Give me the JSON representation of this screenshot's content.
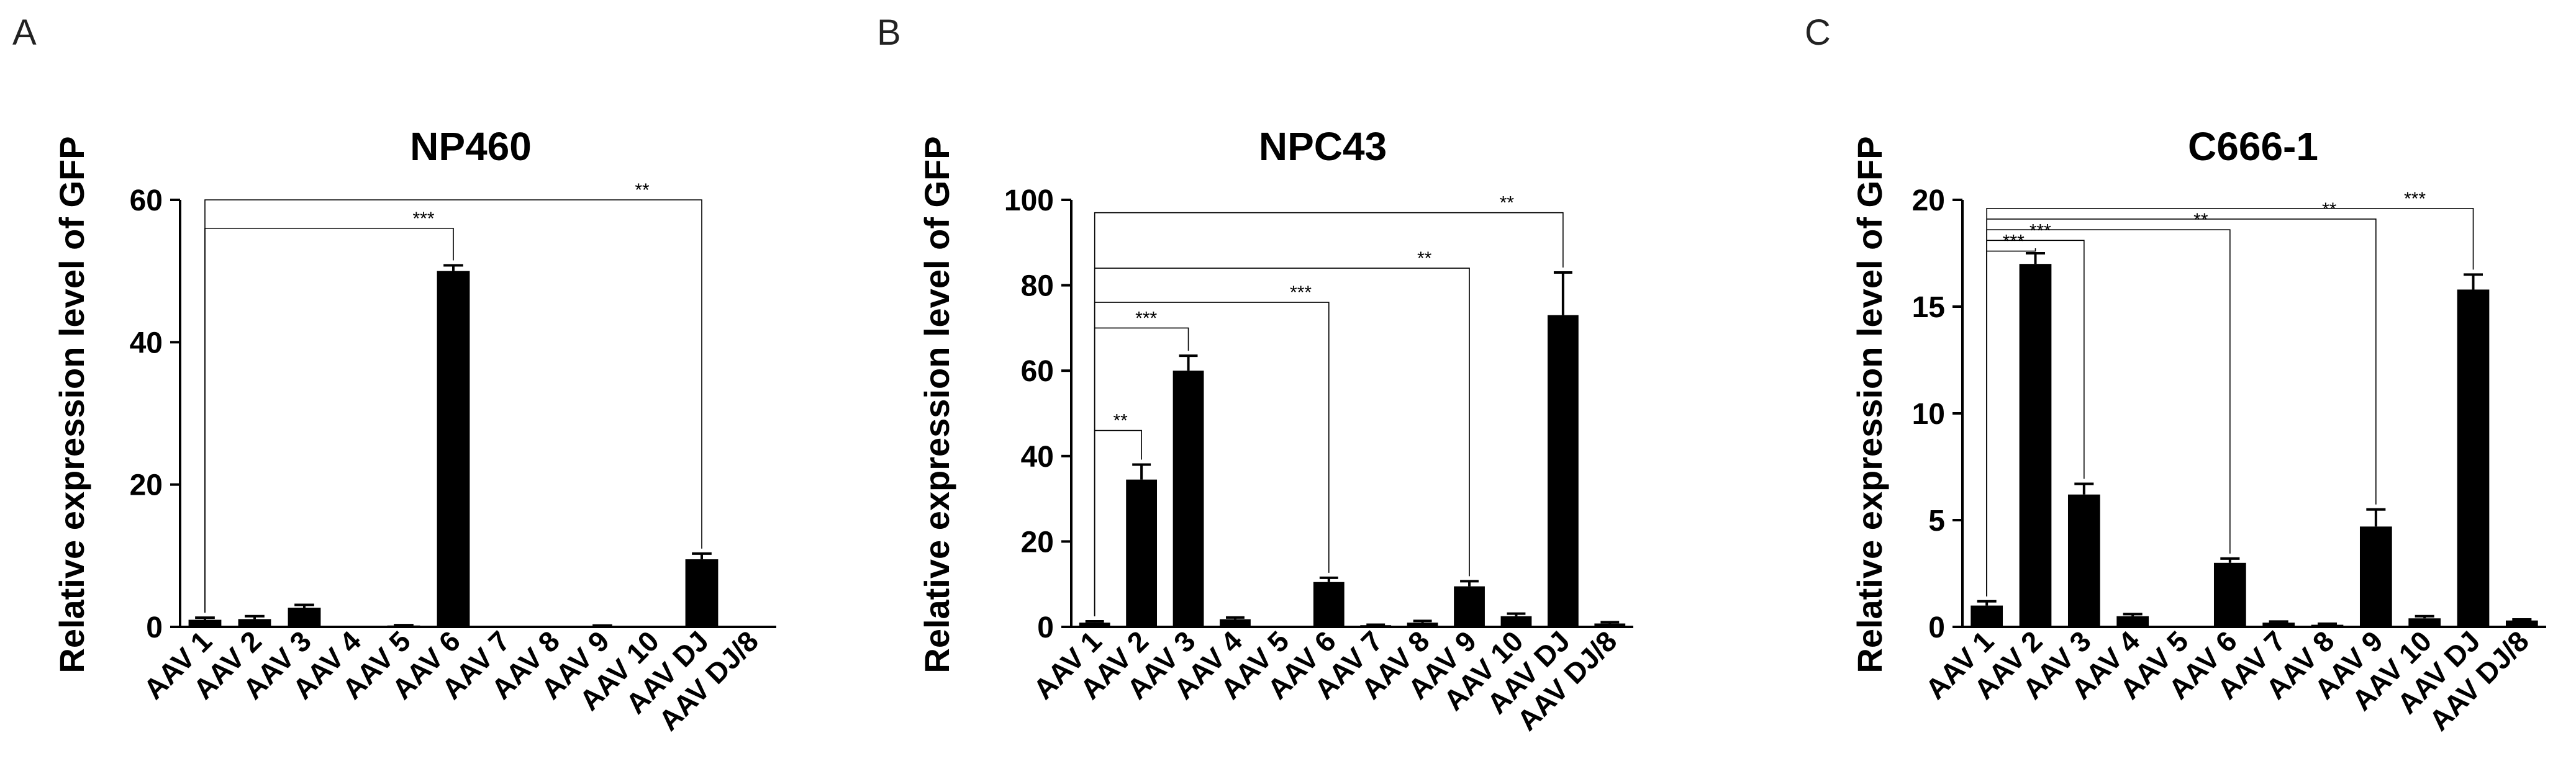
{
  "chart_data": [
    {
      "panel": "A",
      "type": "bar",
      "title": "NP460",
      "ylabel": "Relative expression level of GFP",
      "xlabel": "",
      "categories": [
        "AAV 1",
        "AAV 2",
        "AAV 3",
        "AAV 4",
        "AAV 5",
        "AAV 6",
        "AAV 7",
        "AAV 8",
        "AAV 9",
        "AAV 10",
        "AAV DJ",
        "AAV DJ/8"
      ],
      "values": [
        1.0,
        1.1,
        2.7,
        0.05,
        0.2,
        50.0,
        0.05,
        0.05,
        0.15,
        0.05,
        9.5,
        0.05
      ],
      "errors": [
        0.3,
        0.4,
        0.4,
        0.0,
        0.05,
        0.8,
        0.0,
        0.0,
        0.05,
        0.0,
        0.8,
        0.0
      ],
      "ylim": [
        0,
        60
      ],
      "yticks": [
        0,
        20,
        40,
        60
      ],
      "grid": false,
      "significance": [
        {
          "from": 0,
          "to": 5,
          "level": 56,
          "label": "***"
        },
        {
          "from": 0,
          "to": 10,
          "level": 60,
          "label": "**"
        }
      ]
    },
    {
      "panel": "B",
      "type": "bar",
      "title": "NPC43",
      "ylabel": "Relative expression level of GFP",
      "xlabel": "",
      "categories": [
        "AAV 1",
        "AAV 2",
        "AAV 3",
        "AAV 4",
        "AAV 5",
        "AAV 6",
        "AAV 7",
        "AAV 8",
        "AAV 9",
        "AAV 10",
        "AAV DJ",
        "AAV DJ/8"
      ],
      "values": [
        1.0,
        34.5,
        60.0,
        1.8,
        0.1,
        10.5,
        0.4,
        1.0,
        9.5,
        2.5,
        73.0,
        0.8
      ],
      "errors": [
        0.3,
        3.5,
        3.5,
        0.4,
        0.0,
        1.0,
        0.1,
        0.4,
        1.2,
        0.6,
        10.0,
        0.3
      ],
      "ylim": [
        0,
        100
      ],
      "yticks": [
        0,
        20,
        40,
        60,
        80,
        100
      ],
      "grid": false,
      "significance": [
        {
          "from": 0,
          "to": 1,
          "level": 46,
          "label": "**"
        },
        {
          "from": 0,
          "to": 2,
          "level": 70,
          "label": "***"
        },
        {
          "from": 0,
          "to": 5,
          "level": 76,
          "label": "***"
        },
        {
          "from": 0,
          "to": 8,
          "level": 84,
          "label": "**"
        },
        {
          "from": 0,
          "to": 10,
          "level": 97,
          "label": "**"
        }
      ]
    },
    {
      "panel": "C",
      "type": "bar",
      "title": "C666-1",
      "ylabel": "Relative expression level of GFP",
      "xlabel": "",
      "categories": [
        "AAV 1",
        "AAV 2",
        "AAV 3",
        "AAV 4",
        "AAV 5",
        "AAV 6",
        "AAV 7",
        "AAV 8",
        "AAV 9",
        "AAV 10",
        "AAV DJ",
        "AAV DJ/8"
      ],
      "values": [
        1.0,
        17.0,
        6.2,
        0.5,
        0.02,
        3.0,
        0.2,
        0.1,
        4.7,
        0.4,
        15.8,
        0.3
      ],
      "errors": [
        0.2,
        0.5,
        0.5,
        0.1,
        0.0,
        0.2,
        0.05,
        0.05,
        0.8,
        0.1,
        0.7,
        0.05
      ],
      "ylim": [
        0,
        20
      ],
      "yticks": [
        0,
        5,
        10,
        15,
        20
      ],
      "grid": false,
      "significance": [
        {
          "from": 0,
          "to": 1,
          "level": 17.6,
          "label": "***"
        },
        {
          "from": 0,
          "to": 2,
          "level": 18.1,
          "label": "***"
        },
        {
          "from": 0,
          "to": 5,
          "level": 18.6,
          "label": "**"
        },
        {
          "from": 0,
          "to": 8,
          "level": 19.1,
          "label": "**"
        },
        {
          "from": 0,
          "to": 10,
          "level": 19.6,
          "label": "***"
        }
      ]
    }
  ]
}
